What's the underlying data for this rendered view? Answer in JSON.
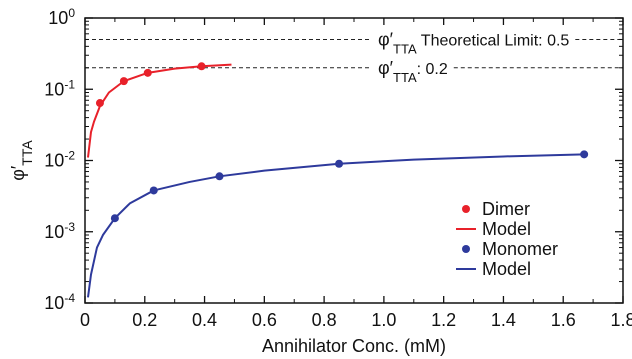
{
  "chart_data": {
    "type": "scatter",
    "xlabel": "Annihilator Conc. (mM)",
    "ylabel_main": "φ′",
    "ylabel_sub": "TTA",
    "xlim": [
      0,
      1.8
    ],
    "ylim": [
      0.0001,
      1
    ],
    "yscale": "log",
    "grid": false,
    "legend_placement": "bottom-right",
    "x_ticks": [
      0,
      0.2,
      0.4,
      0.6,
      0.8,
      1.0,
      1.2,
      1.4,
      1.6,
      1.8
    ],
    "x_tick_labels": [
      "0",
      "0.2",
      "0.4",
      "0.6",
      "0.8",
      "1.0",
      "1.2",
      "1.4",
      "1.6",
      "1.8"
    ],
    "y_ticks": [
      {
        "value": 0.0001,
        "base": "10",
        "exp": "-4"
      },
      {
        "value": 0.001,
        "base": "10",
        "exp": "-3"
      },
      {
        "value": 0.01,
        "base": "10",
        "exp": "-2"
      },
      {
        "value": 0.1,
        "base": "10",
        "exp": "-1"
      },
      {
        "value": 1,
        "base": "10",
        "exp": "0"
      }
    ],
    "series": [
      {
        "name": "Dimer",
        "kind": "points",
        "color": "#e8212a",
        "x": [
          0.05,
          0.13,
          0.21,
          0.39
        ],
        "y": [
          0.064,
          0.13,
          0.17,
          0.21
        ]
      },
      {
        "name": "Model",
        "kind": "line",
        "color": "#e8212a",
        "x": [
          0.01,
          0.02,
          0.03,
          0.05,
          0.08,
          0.13,
          0.21,
          0.3,
          0.39,
          0.49
        ],
        "y": [
          0.011,
          0.025,
          0.035,
          0.058,
          0.09,
          0.13,
          0.17,
          0.195,
          0.21,
          0.222
        ]
      },
      {
        "name": "Monomer",
        "kind": "points",
        "color": "#2e3a9c",
        "x": [
          0.1,
          0.23,
          0.45,
          0.85,
          1.67
        ],
        "y": [
          0.00155,
          0.0038,
          0.006,
          0.009,
          0.0122
        ]
      },
      {
        "name": "Model",
        "kind": "line",
        "color": "#2e3a9c",
        "x": [
          0.01,
          0.02,
          0.04,
          0.06,
          0.1,
          0.15,
          0.23,
          0.35,
          0.45,
          0.6,
          0.85,
          1.1,
          1.4,
          1.67
        ],
        "y": [
          0.00012,
          0.00025,
          0.0006,
          0.0009,
          0.00155,
          0.0025,
          0.0038,
          0.005,
          0.006,
          0.0072,
          0.009,
          0.0103,
          0.0114,
          0.0122
        ]
      }
    ],
    "annotations": [
      {
        "kind": "hline",
        "y": 0.5,
        "style": "dashed",
        "label_main": "φ′",
        "label_sub": "TTA",
        "label_rest": " Theoretical Limit: 0.5"
      },
      {
        "kind": "hline",
        "y": 0.2,
        "style": "dashed",
        "label_main": "φ′",
        "label_sub": "TTA",
        "label_rest": ": 0.2"
      }
    ]
  }
}
